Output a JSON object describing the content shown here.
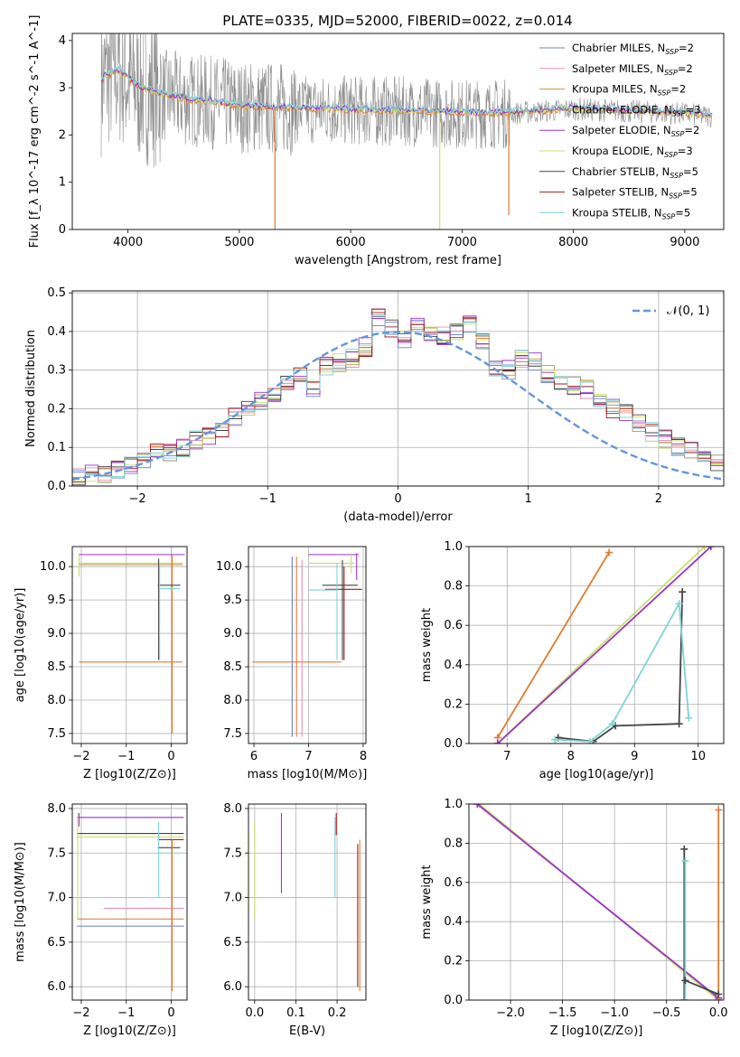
{
  "figure": {
    "title": "PLATE=0335, MJD=52000, FIBERID=0022, z=0.014"
  },
  "colors": {
    "chabrier_miles": "#6a7ecf",
    "salpeter_miles": "#e892b2",
    "kroupa_miles": "#c69442",
    "chabrier_elodie": "#8c8c8c",
    "salpeter_elodie": "#9b30c9",
    "kroupa_elodie": "#c8e06a",
    "chabrier_stelib": "#444444",
    "salpeter_stelib": "#a81717",
    "kroupa_stelib": "#7fd4d8",
    "orange_fit": "#e07b30",
    "normal_curve": "#6495dd",
    "grid": "#b0b0b0"
  },
  "chart_data": [
    {
      "id": "spectrum",
      "type": "line",
      "xlabel": "wavelength [Angstrom, rest frame]",
      "ylabel": "Flux [f_λ 10^-17 erg cm^-2 s^-1 A^-1]",
      "xlim": [
        3500,
        9350
      ],
      "ylim": [
        0,
        4.15
      ],
      "xticks": [
        4000,
        5000,
        6000,
        7000,
        8000,
        9000
      ],
      "yticks": [
        0,
        1,
        2,
        3,
        4
      ],
      "grid": false,
      "legend_position": "top-right",
      "legend": [
        {
          "base": "Chabrier MILES, N",
          "sub": "SSP",
          "end": "=2",
          "color_key": "chabrier_miles"
        },
        {
          "base": "Salpeter MILES, N",
          "sub": "SSP",
          "end": "=2",
          "color_key": "salpeter_miles"
        },
        {
          "base": "Kroupa MILES, N",
          "sub": "SSP",
          "end": "=2",
          "color_key": "kroupa_miles"
        },
        {
          "base": "Chabrier ELODIE, N",
          "sub": "SSP",
          "end": "=3",
          "color_key": "chabrier_elodie"
        },
        {
          "base": "Salpeter ELODIE, N",
          "sub": "SSP",
          "end": "=2",
          "color_key": "salpeter_elodie"
        },
        {
          "base": "Kroupa ELODIE, N",
          "sub": "SSP",
          "end": "=3",
          "color_key": "kroupa_elodie"
        },
        {
          "base": "Chabrier STELIB, N",
          "sub": "SSP",
          "end": "=5",
          "color_key": "chabrier_stelib"
        },
        {
          "base": "Salpeter STELIB, N",
          "sub": "SSP",
          "end": "=5",
          "color_key": "salpeter_stelib"
        },
        {
          "base": "Kroupa STELIB, N",
          "sub": "SSP",
          "end": "=5",
          "color_key": "kroupa_stelib"
        }
      ],
      "continuum": [
        [
          3750,
          3.1
        ],
        [
          3800,
          3.25
        ],
        [
          3900,
          3.35
        ],
        [
          4000,
          3.2
        ],
        [
          4100,
          3.0
        ],
        [
          4300,
          2.85
        ],
        [
          4500,
          2.75
        ],
        [
          4800,
          2.68
        ],
        [
          5000,
          2.6
        ],
        [
          5500,
          2.55
        ],
        [
          6000,
          2.52
        ],
        [
          6500,
          2.5
        ],
        [
          7000,
          2.45
        ],
        [
          7400,
          2.45
        ],
        [
          7600,
          2.48
        ],
        [
          8000,
          2.55
        ],
        [
          8500,
          2.5
        ],
        [
          9000,
          2.45
        ],
        [
          9200,
          2.4
        ]
      ],
      "spikes": [
        {
          "x": 5320,
          "y": 0.0,
          "color_key": "orange_fit"
        },
        {
          "x": 6800,
          "y": 0.0,
          "color_key": "kroupa_elodie"
        },
        {
          "x": 7420,
          "y": 0.3,
          "color_key": "orange_fit"
        }
      ]
    },
    {
      "id": "residuals",
      "type": "line",
      "xlabel": "(data-model)/error",
      "ylabel": "Normed distribution",
      "xlim": [
        -2.5,
        2.5
      ],
      "ylim": [
        0,
        0.505
      ],
      "xticks": [
        -2,
        -1,
        0,
        1,
        2
      ],
      "yticks": [
        0.0,
        0.1,
        0.2,
        0.3,
        0.4,
        0.5
      ],
      "grid": true,
      "legend_position": "top-right",
      "legend": [
        {
          "label": "𝒩(0, 1)",
          "color_key": "normal_curve"
        }
      ],
      "bin_width": 0.1,
      "hist_start": -2.5,
      "hist_counts": [
        0.025,
        0.03,
        0.03,
        0.04,
        0.05,
        0.07,
        0.09,
        0.09,
        0.1,
        0.12,
        0.13,
        0.15,
        0.18,
        0.2,
        0.22,
        0.24,
        0.26,
        0.29,
        0.25,
        0.31,
        0.32,
        0.33,
        0.36,
        0.44,
        0.41,
        0.38,
        0.41,
        0.4,
        0.39,
        0.4,
        0.42,
        0.38,
        0.3,
        0.3,
        0.33,
        0.32,
        0.29,
        0.27,
        0.26,
        0.25,
        0.22,
        0.2,
        0.19,
        0.16,
        0.14,
        0.12,
        0.1,
        0.09,
        0.08,
        0.06,
        0.05,
        0.04
      ]
    },
    {
      "id": "age_vs_Z",
      "type": "scatter",
      "xlabel": "Z [log10(Z/Z⊙)]",
      "ylabel": "age  [log10(age/yr)]",
      "xlim": [
        -2.2,
        0.35
      ],
      "ylim": [
        7.35,
        10.3
      ],
      "xticks": [
        -2,
        -1,
        0
      ],
      "yticks": [
        7.5,
        8.0,
        8.5,
        9.0,
        9.5,
        10.0
      ],
      "grid": true
    },
    {
      "id": "age_vs_mass",
      "type": "scatter",
      "xlabel": "mass [log10(M/M⊙)]",
      "ylabel": "",
      "xlim": [
        5.9,
        8.05
      ],
      "ylim": [
        7.35,
        10.3
      ],
      "xticks": [
        6,
        7,
        8
      ],
      "yticks": [
        7.5,
        8.0,
        8.5,
        9.0,
        9.5,
        10.0
      ],
      "grid": true
    },
    {
      "id": "mass_weight_vs_age",
      "type": "line",
      "xlabel": "age  [log10(age/yr)]",
      "ylabel": "mass weight",
      "xlim": [
        6.4,
        10.4
      ],
      "ylim": [
        0,
        1.0
      ],
      "xticks": [
        7,
        8,
        9,
        10
      ],
      "yticks": [
        0.0,
        0.2,
        0.4,
        0.6,
        0.8,
        1.0
      ],
      "grid": true,
      "series": [
        {
          "color_key": "orange_fit",
          "points": [
            [
              6.85,
              0.03
            ],
            [
              8.6,
              0.97
            ]
          ]
        },
        {
          "color_key": "kroupa_elodie",
          "points": [
            [
              6.85,
              0.0
            ],
            [
              10.1,
              1.0
            ]
          ]
        },
        {
          "color_key": "salpeter_elodie",
          "points": [
            [
              6.85,
              0.0
            ],
            [
              10.2,
              1.0
            ]
          ]
        },
        {
          "color_key": "chabrier_stelib",
          "points": [
            [
              7.8,
              0.03
            ],
            [
              8.35,
              0.01
            ],
            [
              8.7,
              0.09
            ],
            [
              9.7,
              0.1
            ],
            [
              9.75,
              0.77
            ]
          ]
        },
        {
          "color_key": "kroupa_stelib",
          "points": [
            [
              7.75,
              0.02
            ],
            [
              8.3,
              0.01
            ],
            [
              8.65,
              0.1
            ],
            [
              9.7,
              0.71
            ],
            [
              9.85,
              0.13
            ]
          ]
        }
      ]
    },
    {
      "id": "mass_vs_Z",
      "type": "scatter",
      "xlabel": "Z [log10(Z/Z⊙)]",
      "ylabel": "mass [log10(M/M⊙)]",
      "xlim": [
        -2.2,
        0.35
      ],
      "ylim": [
        5.85,
        8.05
      ],
      "xticks": [
        -2,
        -1,
        0
      ],
      "yticks": [
        6.0,
        6.5,
        7.0,
        7.5,
        8.0
      ],
      "grid": true
    },
    {
      "id": "mass_vs_ebv",
      "type": "scatter",
      "xlabel": "E(B-V)",
      "ylabel": "",
      "xlim": [
        -0.015,
        0.27
      ],
      "ylim": [
        5.85,
        8.05
      ],
      "xticks": [
        0.0,
        0.1,
        0.2
      ],
      "yticks": [
        6.0,
        6.5,
        7.0,
        7.5,
        8.0
      ],
      "grid": true,
      "segments": [
        {
          "x": 0.0,
          "y0": 6.75,
          "y1": 7.85,
          "color_key": "kroupa_elodie"
        },
        {
          "x": 0.065,
          "y0": 7.05,
          "y1": 7.95,
          "color_key": "salpeter_elodie"
        },
        {
          "x": 0.195,
          "y0": 7.0,
          "y1": 7.9,
          "color_key": "kroupa_stelib"
        },
        {
          "x": 0.198,
          "y0": 7.7,
          "y1": 7.95,
          "color_key": "salpeter_stelib"
        },
        {
          "x": 0.255,
          "y0": 5.95,
          "y1": 7.65,
          "color_key": "orange_fit"
        },
        {
          "x": 0.25,
          "y0": 6.0,
          "y1": 7.6,
          "color_key": "salpeter_stelib"
        }
      ]
    },
    {
      "id": "mass_weight_vs_Z",
      "type": "line",
      "xlabel": "Z [log10(Z/Z⊙)]",
      "ylabel": "mass weight",
      "xlim": [
        -2.4,
        0.05
      ],
      "ylim": [
        0,
        1.0
      ],
      "xticks": [
        -2.0,
        -1.5,
        -1.0,
        -0.5,
        0.0
      ],
      "yticks": [
        0.0,
        0.2,
        0.4,
        0.6,
        0.8,
        1.0
      ],
      "grid": true,
      "series": [
        {
          "color_key": "kroupa_elodie",
          "points": [
            [
              -2.3,
              1.0
            ],
            [
              0.0,
              0.0
            ]
          ]
        },
        {
          "color_key": "salpeter_elodie",
          "points": [
            [
              -2.32,
              1.0
            ],
            [
              0.0,
              0.01
            ]
          ]
        },
        {
          "color_key": "chabrier_stelib",
          "points": [
            [
              -0.33,
              0.77
            ],
            [
              -0.33,
              0.0
            ]
          ]
        },
        {
          "color_key": "kroupa_stelib",
          "points": [
            [
              -0.32,
              0.71
            ],
            [
              -0.32,
              0.0
            ]
          ]
        },
        {
          "color_key": "orange_fit",
          "points": [
            [
              0.0,
              0.97
            ],
            [
              0.0,
              0.0
            ]
          ]
        },
        {
          "color_key": "chabrier_stelib",
          "points": [
            [
              -0.32,
              0.1
            ],
            [
              0.0,
              0.03
            ]
          ]
        }
      ]
    }
  ]
}
